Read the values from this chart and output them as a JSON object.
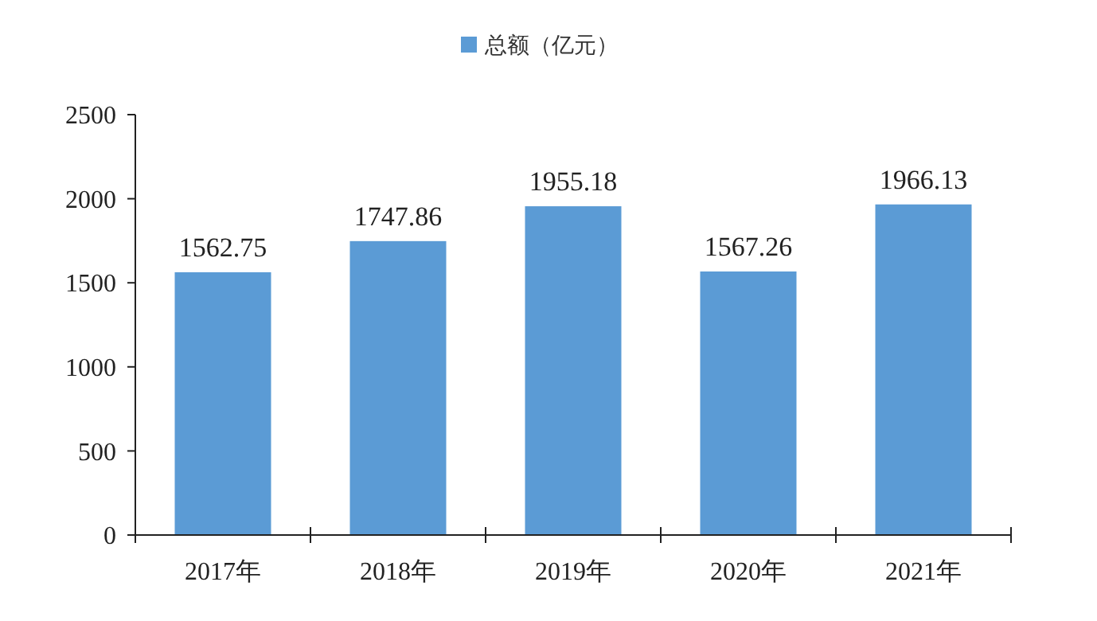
{
  "chart_data": {
    "type": "bar",
    "categories": [
      "2017年",
      "2018年",
      "2019年",
      "2020年",
      "2021年"
    ],
    "series": [
      {
        "name": "总额（亿元）",
        "color": "#5b9bd5",
        "values": [
          1562.75,
          1747.86,
          1955.18,
          1567.26,
          1966.13
        ]
      }
    ],
    "ylim": [
      0,
      2500
    ],
    "yticks": [
      0,
      500,
      1000,
      1500,
      2000,
      2500
    ],
    "data_labels": true,
    "legend": "top",
    "grid": false
  }
}
